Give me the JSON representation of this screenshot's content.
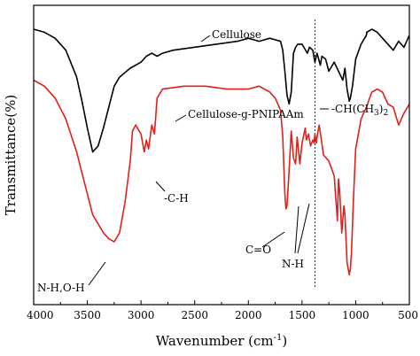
{
  "chart_data": {
    "type": "line",
    "title": "",
    "xlabel": "Wavenumber (cm",
    "xlabel_sup": "-1",
    "xlabel_tail": ")",
    "ylabel": "Transmittance(%)",
    "xlim": [
      4000,
      500
    ],
    "x_reversed": true,
    "y_ticks_shown": false,
    "x_ticks": [
      4000,
      3500,
      3000,
      2500,
      2000,
      1500,
      1000,
      500
    ],
    "x_tick_labels": [
      "4000",
      "3500",
      "3000",
      "2500",
      "2000",
      "1500",
      "1000",
      "500"
    ],
    "grid": false,
    "reference_line": {
      "x": 1380,
      "style": "dotted"
    },
    "series": [
      {
        "name": "Cellulose",
        "color": "#000000",
        "x": [
          4000,
          3900,
          3800,
          3700,
          3600,
          3550,
          3500,
          3450,
          3400,
          3350,
          3300,
          3250,
          3200,
          3100,
          3000,
          2950,
          2900,
          2850,
          2800,
          2700,
          2500,
          2300,
          2100,
          2000,
          1900,
          1800,
          1700,
          1680,
          1660,
          1640,
          1620,
          1600,
          1580,
          1560,
          1540,
          1500,
          1450,
          1430,
          1400,
          1380,
          1360,
          1330,
          1315,
          1280,
          1250,
          1200,
          1160,
          1120,
          1100,
          1080,
          1060,
          1050,
          1030,
          1000,
          950,
          900,
          897,
          850,
          800,
          750,
          700,
          650,
          600,
          550,
          500
        ],
        "y": [
          92,
          91,
          89,
          85,
          76,
          68,
          59,
          51,
          53,
          59,
          66,
          73,
          76,
          79,
          81,
          83,
          84,
          83,
          84,
          85,
          86,
          87,
          88,
          89,
          88,
          89,
          88,
          85,
          78,
          70,
          67,
          71,
          84,
          86,
          87,
          87,
          84,
          86,
          85,
          81,
          84,
          80,
          83,
          82,
          78,
          81,
          78,
          75,
          79,
          72,
          68,
          69,
          73,
          82,
          87,
          90,
          91,
          92,
          91,
          89,
          87,
          85,
          88,
          86,
          90
        ]
      },
      {
        "name": "Cellulose-g-PNIPAAm",
        "color": "#e0201b",
        "x": [
          4000,
          3900,
          3800,
          3700,
          3600,
          3550,
          3500,
          3450,
          3400,
          3350,
          3300,
          3250,
          3200,
          3150,
          3100,
          3080,
          3050,
          3000,
          2980,
          2970,
          2950,
          2930,
          2900,
          2875,
          2850,
          2800,
          2600,
          2400,
          2200,
          2000,
          1900,
          1800,
          1750,
          1700,
          1680,
          1660,
          1650,
          1640,
          1620,
          1600,
          1580,
          1560,
          1545,
          1520,
          1500,
          1470,
          1460,
          1440,
          1420,
          1400,
          1388,
          1380,
          1367,
          1360,
          1340,
          1320,
          1300,
          1250,
          1200,
          1170,
          1160,
          1150,
          1130,
          1110,
          1100,
          1080,
          1060,
          1050,
          1040,
          1020,
          1000,
          950,
          900,
          850,
          800,
          750,
          700,
          650,
          600,
          550,
          500
        ],
        "y": [
          75,
          73,
          69,
          62,
          51,
          44,
          37,
          30,
          27,
          24,
          22,
          21,
          24,
          34,
          48,
          58,
          60,
          57,
          53,
          51,
          55,
          52,
          60,
          57,
          69,
          72,
          73,
          73,
          72,
          72,
          73,
          71,
          69,
          65,
          56,
          37,
          32,
          33,
          45,
          58,
          49,
          47,
          56,
          47,
          54,
          59,
          55,
          57,
          53,
          55,
          54,
          57,
          54,
          56,
          60,
          55,
          50,
          48,
          43,
          28,
          42,
          38,
          24,
          33,
          30,
          14,
          10,
          12,
          17,
          36,
          52,
          62,
          66,
          71,
          72,
          71,
          67,
          66,
          60,
          64,
          67
        ]
      }
    ],
    "annotations": {
      "cellulose": "Cellulose",
      "graft": "Cellulose-g-PNIPAAm",
      "ch_label": "-C-H",
      "nh_oh": "N-H,O-H",
      "co": "C=O",
      "nh": "N-H",
      "ch_iso": "-CH(CH",
      "ch_iso_sub": "3",
      "ch_iso_tail": ")",
      "ch_iso_sub2": "2"
    }
  }
}
